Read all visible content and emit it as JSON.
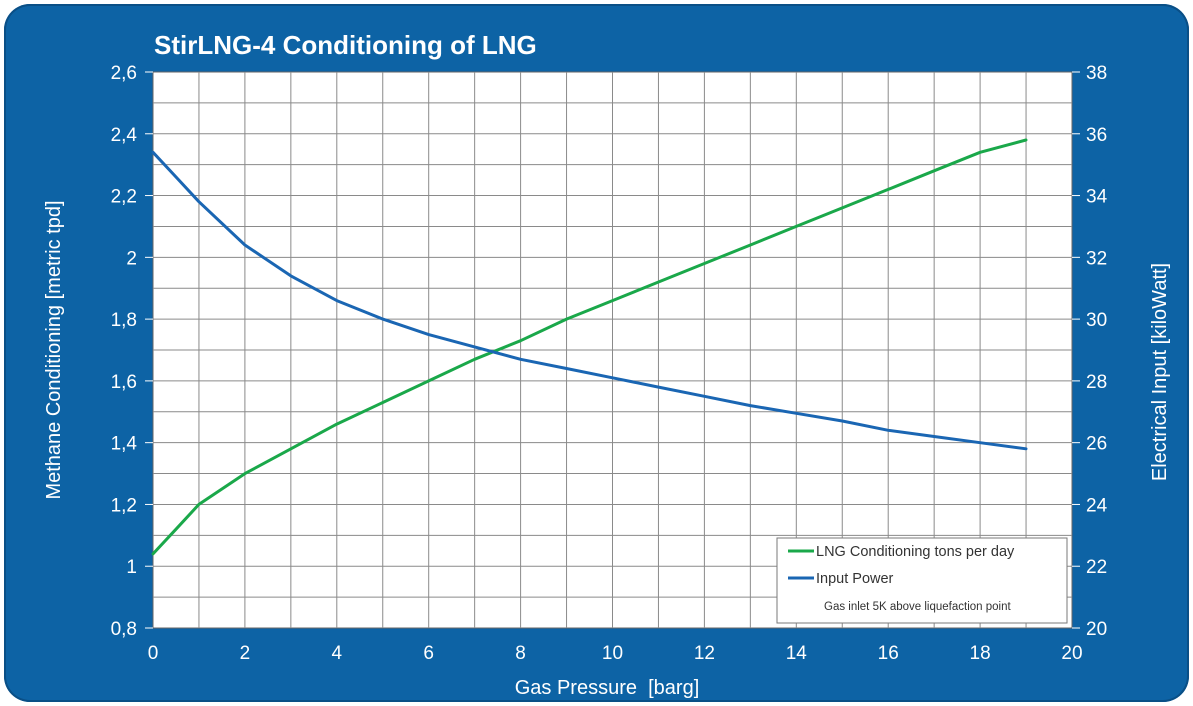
{
  "chart_data": {
    "type": "line",
    "title": "StirLNG-4 Conditioning of LNG",
    "xlabel": "Gas Pressure  [barg]",
    "ylabel": "Methane Conditioning [metric tpd]",
    "y2label": "Electrical Input [kiloWatt]",
    "xlim": [
      0,
      20
    ],
    "ylim": [
      0.8,
      2.6
    ],
    "y2lim": [
      20,
      38
    ],
    "x_ticks": [
      "0",
      "2",
      "4",
      "6",
      "8",
      "10",
      "12",
      "14",
      "16",
      "18",
      "20"
    ],
    "y_ticks": [
      "0,8",
      "1",
      "1,2",
      "1,4",
      "1,6",
      "1,8",
      "2",
      "2,2",
      "2,4",
      "2,6"
    ],
    "y2_ticks": [
      "20",
      "22",
      "24",
      "26",
      "28",
      "30",
      "32",
      "34",
      "36",
      "38"
    ],
    "grid": true,
    "legend_position": "bottom-right",
    "legend_note": "Gas inlet 5K above liquefaction point",
    "colors": {
      "background": "#0d63a5",
      "plot": "#ffffff",
      "grid": "#8a8a8a",
      "lng": "#1aa84a",
      "power": "#1a66b3"
    },
    "series": [
      {
        "name": "LNG Conditioning tons per day",
        "axis": "left",
        "x": [
          0,
          0.5,
          1,
          2,
          3,
          4,
          5,
          6,
          7,
          8,
          9,
          10,
          11,
          12,
          13,
          14,
          15,
          16,
          17,
          18,
          19
        ],
        "values": [
          1.04,
          1.12,
          1.2,
          1.3,
          1.38,
          1.46,
          1.53,
          1.6,
          1.67,
          1.73,
          1.8,
          1.86,
          1.92,
          1.98,
          2.04,
          2.1,
          2.16,
          2.22,
          2.28,
          2.34,
          2.38
        ]
      },
      {
        "name": "Input Power",
        "axis": "right",
        "x": [
          0,
          0.5,
          1,
          2,
          3,
          4,
          5,
          6,
          7,
          8,
          9,
          10,
          11,
          12,
          13,
          14,
          15,
          16,
          17,
          18,
          19
        ],
        "values": [
          35.4,
          34.6,
          33.8,
          32.4,
          31.4,
          30.6,
          30.0,
          29.5,
          29.1,
          28.7,
          28.4,
          28.1,
          27.8,
          27.5,
          27.2,
          26.95,
          26.7,
          26.4,
          26.2,
          26.0,
          25.8
        ]
      }
    ]
  }
}
